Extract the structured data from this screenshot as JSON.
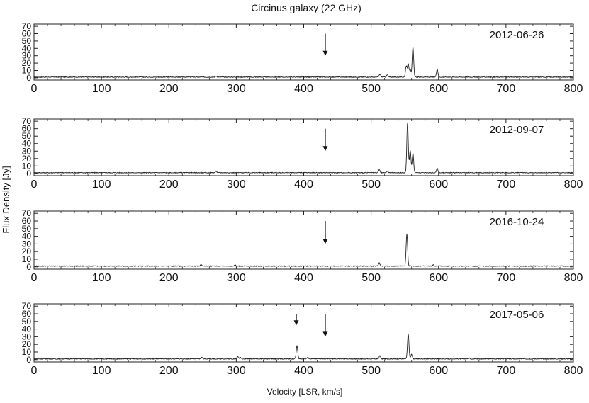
{
  "chart_data": {
    "type": "line",
    "title": "Circinus galaxy (22 GHz)",
    "xlabel": "Velocity [LSR, km/s]",
    "ylabel": "Flux Density  [Jy]",
    "xlim": [
      0,
      800
    ],
    "ylim": [
      -3,
      73
    ],
    "x_ticks": [
      "0",
      "100",
      "200",
      "300",
      "400",
      "500",
      "600",
      "700",
      "800"
    ],
    "y_ticks": [
      "0",
      "10",
      "20",
      "30",
      "40",
      "50",
      "60",
      "70"
    ],
    "grid": false,
    "panels": [
      {
        "date": "2012-06-26",
        "arrows": [
          {
            "velocity": 432,
            "size": "large"
          }
        ],
        "baseline": 1,
        "peaks": [
          {
            "v": 270,
            "flux": 1.5
          },
          {
            "v": 513,
            "flux": 4
          },
          {
            "v": 524,
            "flux": 3
          },
          {
            "v": 552,
            "flux": 15
          },
          {
            "v": 555,
            "flux": 18
          },
          {
            "v": 558,
            "flux": 10
          },
          {
            "v": 562,
            "flux": 41
          },
          {
            "v": 598,
            "flux": 11
          }
        ]
      },
      {
        "date": "2012-09-07",
        "arrows": [
          {
            "velocity": 432,
            "size": "large"
          }
        ],
        "baseline": 1,
        "peaks": [
          {
            "v": 270,
            "flux": 2
          },
          {
            "v": 512,
            "flux": 4
          },
          {
            "v": 524,
            "flux": 2
          },
          {
            "v": 554,
            "flux": 67
          },
          {
            "v": 558,
            "flux": 30
          },
          {
            "v": 562,
            "flux": 26
          },
          {
            "v": 598,
            "flux": 6
          }
        ]
      },
      {
        "date": "2016-10-24",
        "arrows": [
          {
            "velocity": 432,
            "size": "large"
          }
        ],
        "baseline": 1,
        "peaks": [
          {
            "v": 248,
            "flux": 2
          },
          {
            "v": 298,
            "flux": 1.5
          },
          {
            "v": 512,
            "flux": 4
          },
          {
            "v": 553,
            "flux": 42
          },
          {
            "v": 592,
            "flux": 1.5
          }
        ]
      },
      {
        "date": "2017-05-06",
        "arrows": [
          {
            "velocity": 389,
            "size": "small"
          },
          {
            "velocity": 432,
            "size": "large"
          }
        ],
        "baseline": 1,
        "peaks": [
          {
            "v": 249,
            "flux": 2
          },
          {
            "v": 302,
            "flux": 3
          },
          {
            "v": 306,
            "flux": 2
          },
          {
            "v": 390,
            "flux": 17
          },
          {
            "v": 406,
            "flux": 2
          },
          {
            "v": 513,
            "flux": 4
          },
          {
            "v": 555,
            "flux": 33
          },
          {
            "v": 560,
            "flux": 6
          },
          {
            "v": 645,
            "flux": 1.5
          }
        ]
      }
    ]
  }
}
